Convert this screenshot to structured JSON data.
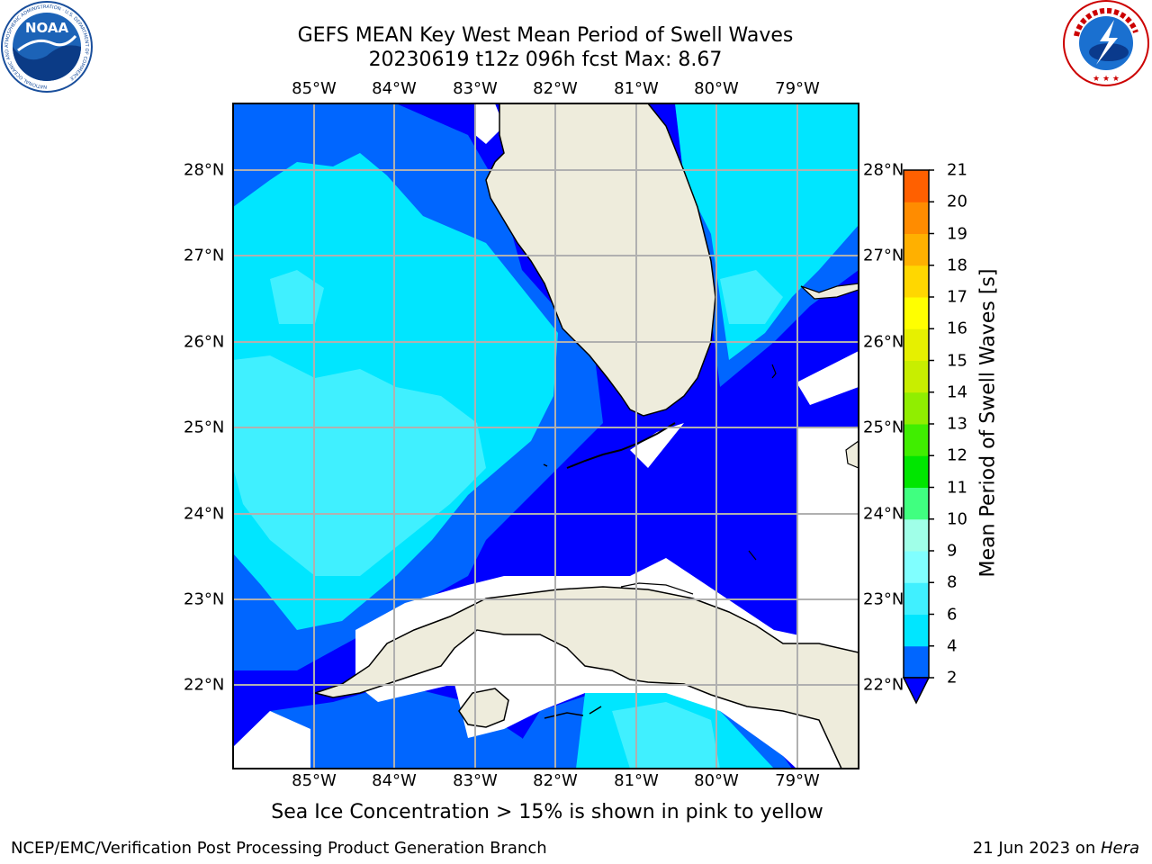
{
  "title": {
    "line1": "GEFS MEAN Key West Mean Period of Swell Waves",
    "line2": "20230619 t12z 096h fcst   Max: 8.67"
  },
  "map": {
    "lon_labels": [
      "85°W",
      "84°W",
      "83°W",
      "82°W",
      "81°W",
      "80°W",
      "79°W"
    ],
    "lat_labels": [
      "28°N",
      "27°N",
      "26°N",
      "25°N",
      "24°N",
      "23°N",
      "22°N"
    ]
  },
  "colorbar": {
    "title": "Mean Period of Swell Waves [s]",
    "ticks": [
      "2",
      "4",
      "6",
      "8",
      "9",
      "10",
      "11",
      "12",
      "13",
      "14",
      "15",
      "16",
      "17",
      "18",
      "19",
      "20",
      "21"
    ],
    "colors": [
      "#0066ff",
      "#00e6ff",
      "#40f0ff",
      "#80ffff",
      "#a0ffe8",
      "#40ff80",
      "#00e600",
      "#40ee00",
      "#90ee00",
      "#c8ee00",
      "#e6f000",
      "#ffff00",
      "#ffd700",
      "#ffb000",
      "#ff8c00",
      "#ff6000",
      "#ff3000",
      "#ff0000"
    ],
    "under_color": "#0000ff"
  },
  "note": "Sea Ice Concentration > 15% is shown in pink to yellow",
  "footer": {
    "left": "NCEP/EMC/Verification Post Processing Product Generation Branch",
    "date": "21 Jun 2023 on ",
    "machine": "Hera"
  },
  "logos": {
    "left": "NOAA",
    "left_ring": "NATIONAL OCEANIC AND ATMOSPHERIC ADMINISTRATION · U.S. DEPARTMENT OF COMMERCE",
    "right_ring": "NATIONAL WEATHER SERVICE"
  }
}
